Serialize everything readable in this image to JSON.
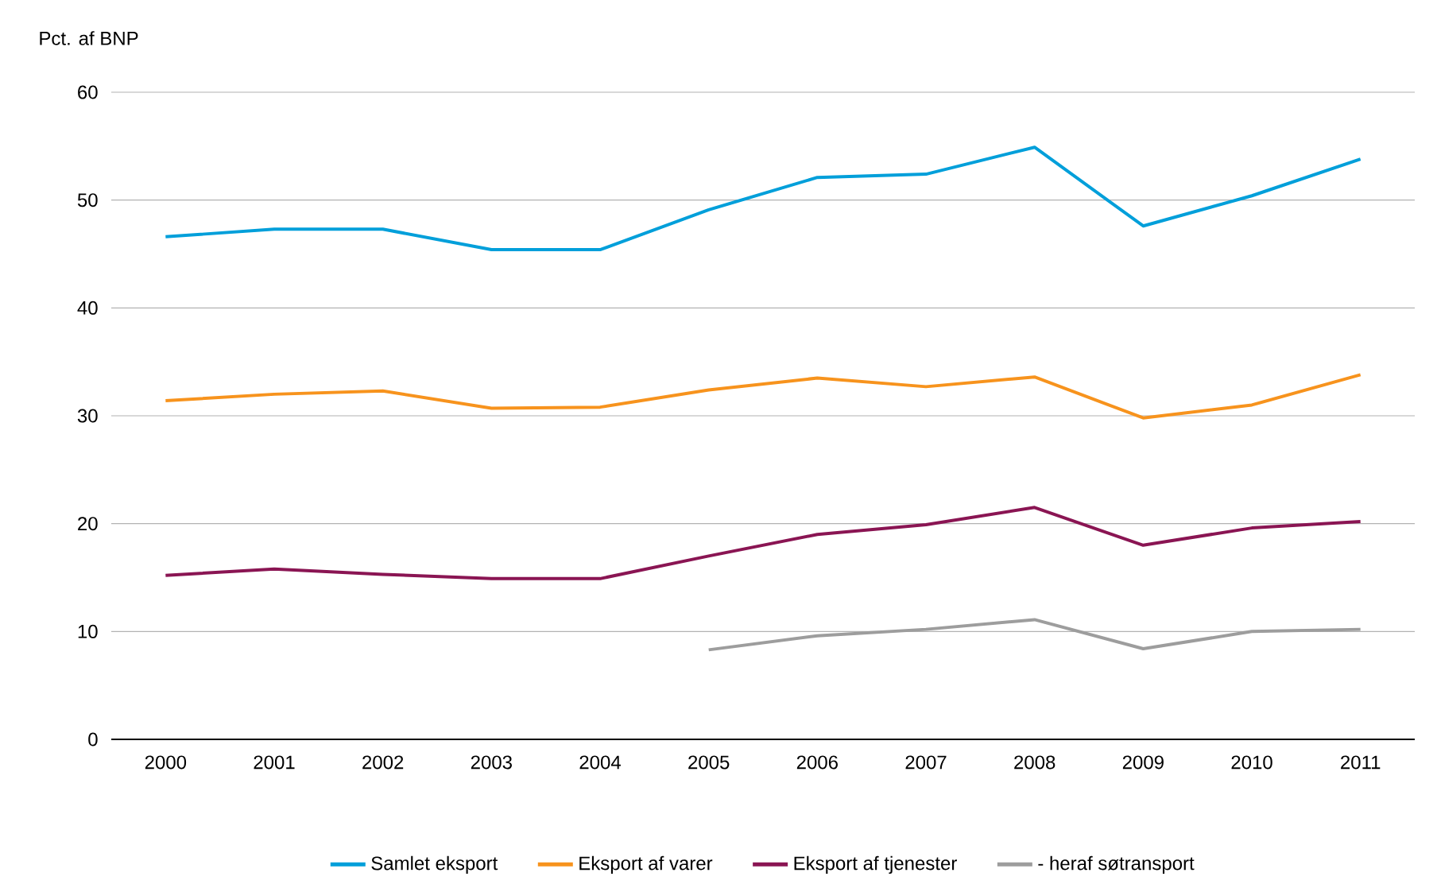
{
  "chart_data": {
    "type": "line",
    "ylabel": "Pct. af BNP",
    "categories": [
      "2000",
      "2001",
      "2002",
      "2003",
      "2004",
      "2005",
      "2006",
      "2007",
      "2008",
      "2009",
      "2010",
      "2011"
    ],
    "series": [
      {
        "name": "Samlet eksport",
        "color": "#009fda",
        "values": [
          46.6,
          47.3,
          47.3,
          45.4,
          45.4,
          49.1,
          52.1,
          52.4,
          54.9,
          47.6,
          50.4,
          53.8
        ]
      },
      {
        "name": "Eksport af varer",
        "color": "#f7931d",
        "values": [
          31.4,
          32.0,
          32.3,
          30.7,
          30.8,
          32.4,
          33.5,
          32.7,
          33.6,
          29.8,
          31.0,
          33.8
        ]
      },
      {
        "name": "Eksport af tjenester",
        "color": "#8a1553",
        "values": [
          15.2,
          15.8,
          15.3,
          14.9,
          14.9,
          17.0,
          19.0,
          19.9,
          21.5,
          18.0,
          19.6,
          20.2
        ]
      },
      {
        "name": "- heraf søtransport",
        "color": "#9d9d9d",
        "values": [
          null,
          null,
          null,
          null,
          null,
          8.3,
          9.6,
          10.2,
          11.1,
          8.4,
          10.0,
          10.2
        ]
      }
    ],
    "ylim": [
      0,
      60
    ],
    "yticks": [
      0,
      10,
      20,
      30,
      40,
      50,
      60
    ],
    "grid": "y",
    "legend": "bottom",
    "marker": "none",
    "line_style": "solid"
  }
}
